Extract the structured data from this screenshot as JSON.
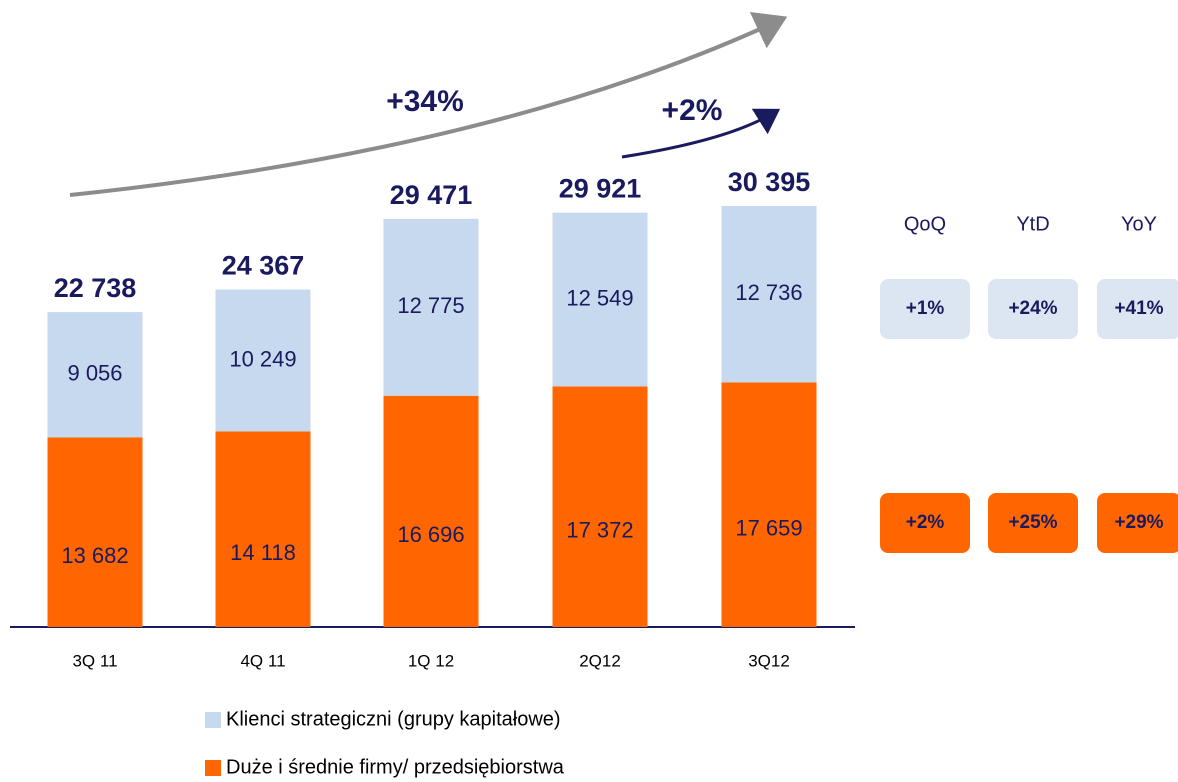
{
  "chart_data": {
    "type": "stacked_bar",
    "categories": [
      "3Q 11",
      "4Q 11",
      "1Q 12",
      "2Q12",
      "3Q12"
    ],
    "series": [
      {
        "name": "Duże i średnie firmy/ przedsiębiorstwa",
        "color": "#ff6600",
        "values": [
          13682,
          14118,
          16696,
          17372,
          17659
        ],
        "value_labels": [
          "13 682",
          "14 118",
          "16 696",
          "17 372",
          "17 659"
        ]
      },
      {
        "name": "Klienci strategiczni (grupy kapitałowe)",
        "color": "#c6d9ee",
        "values": [
          9056,
          10249,
          12775,
          12549,
          12736
        ],
        "value_labels": [
          "9 056",
          "10 249",
          "12 775",
          "12 549",
          "12 736"
        ]
      }
    ],
    "totals": [
      22738,
      24367,
      29471,
      29921,
      30395
    ],
    "total_labels": [
      "22 738",
      "24 367",
      "29 471",
      "29 921",
      "30 395"
    ],
    "ylim": [
      0,
      40000
    ],
    "annotations": [
      "+34%",
      "+2%"
    ],
    "growth": {
      "headers": [
        "QoQ",
        "YtD",
        "YoY"
      ],
      "rows": [
        [
          "+1%",
          "+24%",
          "+41%"
        ],
        [
          "+2%",
          "+25%",
          "+29%"
        ]
      ],
      "colors": [
        "#dce6f2",
        "#ff6600"
      ]
    }
  }
}
